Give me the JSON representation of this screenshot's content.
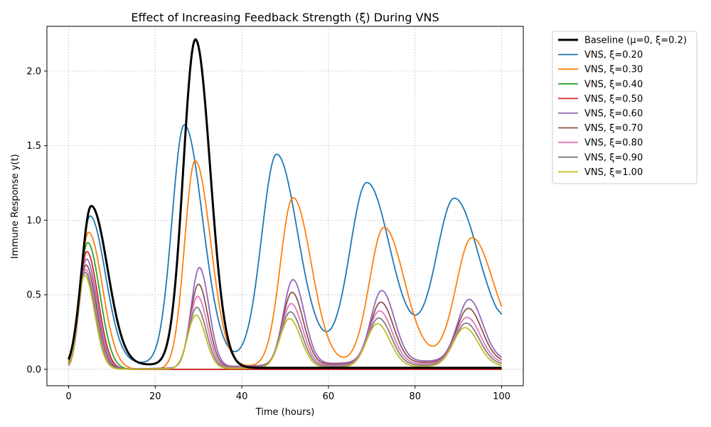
{
  "chart_data": {
    "type": "line",
    "title": "Effect of Increasing Feedback Strength (ξ) During VNS",
    "xlabel": "Time (hours)",
    "ylabel": "Immune Response y(t)",
    "xlim": [
      -5,
      105
    ],
    "ylim": [
      -0.11,
      2.3
    ],
    "x_ticks": [
      0,
      20,
      40,
      60,
      80,
      100
    ],
    "x_tick_labels": [
      "0",
      "20",
      "40",
      "60",
      "80",
      "100"
    ],
    "y_ticks": [
      0.0,
      0.5,
      1.0,
      1.5,
      2.0
    ],
    "y_tick_labels": [
      "0.0",
      "0.5",
      "1.0",
      "1.5",
      "2.0"
    ],
    "grid": true,
    "grid_style": "dotted",
    "legend_position": "outside-top-right",
    "series": [
      {
        "name": "Baseline (μ=0, ξ=0.2)",
        "color": "#000000",
        "width": 3,
        "peaks": [
          [
            5.2,
            1.09,
            2.2,
            3.8
          ],
          [
            29.3,
            2.19,
            2.8,
            3.4
          ]
        ],
        "troughs": [
          [
            18.5,
            0.03
          ]
        ],
        "tail": [
          [
            45,
            0.01
          ]
        ]
      },
      {
        "name": "VNS, ξ=0.20",
        "color": "#1f77b4",
        "width": 1.8,
        "peaks": [
          [
            4.9,
            1.02,
            2.0,
            3.6
          ],
          [
            26.7,
            1.59,
            2.8,
            4.2
          ],
          [
            48.0,
            1.35,
            3.4,
            4.8
          ],
          [
            68.8,
            1.1,
            3.8,
            5.2
          ],
          [
            89.0,
            0.94,
            4.0,
            5.4
          ]
        ],
        "troughs": [
          [
            16.5,
            0.04
          ],
          [
            37.0,
            0.06
          ],
          [
            58.0,
            0.12
          ],
          [
            78.5,
            0.18
          ],
          [
            98.5,
            0.23
          ]
        ],
        "tail": [
          [
            100,
            0.25
          ]
        ]
      },
      {
        "name": "VNS, ξ=0.30",
        "color": "#ff7f0e",
        "width": 1.8,
        "peaks": [
          [
            4.6,
            0.92,
            1.9,
            3.2
          ],
          [
            29.2,
            1.39,
            2.4,
            3.6
          ],
          [
            51.8,
            1.12,
            2.9,
            4.2
          ],
          [
            72.8,
            0.89,
            3.3,
            4.6
          ],
          [
            93.0,
            0.75,
            3.5,
            4.8
          ]
        ],
        "troughs": [
          [
            18.0,
            0.0
          ],
          [
            40.0,
            0.02
          ],
          [
            61.5,
            0.04
          ],
          [
            82.5,
            0.08
          ]
        ],
        "tail": [
          [
            100,
            0.16
          ]
        ]
      },
      {
        "name": "VNS, ξ=0.40",
        "color": "#2ca02c",
        "width": 1.8,
        "peaks": [
          [
            4.4,
            0.85,
            1.8,
            2.8
          ]
        ],
        "troughs": [],
        "tail": [
          [
            18,
            0.0
          ]
        ]
      },
      {
        "name": "VNS, ξ=0.50",
        "color": "#d62728",
        "width": 1.8,
        "peaks": [
          [
            4.2,
            0.79,
            1.7,
            2.6
          ]
        ],
        "troughs": [],
        "tail": [
          [
            18,
            0.0
          ]
        ]
      },
      {
        "name": "VNS, ξ=0.60",
        "color": "#9467bd",
        "width": 1.8,
        "peaks": [
          [
            4.1,
            0.74,
            1.6,
            2.5
          ],
          [
            30.2,
            0.67,
            1.9,
            2.2
          ],
          [
            51.8,
            0.57,
            2.2,
            2.6
          ],
          [
            72.3,
            0.48,
            2.5,
            2.9
          ],
          [
            92.5,
            0.41,
            2.7,
            3.1
          ]
        ],
        "troughs": [],
        "tail": [
          [
            100,
            0.06
          ]
        ]
      },
      {
        "name": "VNS, ξ=0.70",
        "color": "#8c564b",
        "width": 1.8,
        "peaks": [
          [
            4.0,
            0.7,
            1.6,
            2.4
          ],
          [
            30.0,
            0.56,
            1.9,
            2.2
          ],
          [
            51.6,
            0.49,
            2.2,
            2.6
          ],
          [
            72.1,
            0.41,
            2.5,
            2.9
          ],
          [
            92.3,
            0.36,
            2.7,
            3.1
          ]
        ],
        "troughs": [],
        "tail": [
          [
            100,
            0.05
          ]
        ]
      },
      {
        "name": "VNS, ξ=0.80",
        "color": "#e377c2",
        "width": 1.8,
        "peaks": [
          [
            3.9,
            0.67,
            1.5,
            2.3
          ],
          [
            29.8,
            0.48,
            1.9,
            2.2
          ],
          [
            51.4,
            0.42,
            2.2,
            2.6
          ],
          [
            71.8,
            0.36,
            2.5,
            2.9
          ],
          [
            92.0,
            0.31,
            2.7,
            3.1
          ]
        ],
        "troughs": [],
        "tail": [
          [
            100,
            0.04
          ]
        ]
      },
      {
        "name": "VNS, ξ=0.90",
        "color": "#7f7f7f",
        "width": 1.8,
        "peaks": [
          [
            3.8,
            0.65,
            1.5,
            2.3
          ],
          [
            29.6,
            0.41,
            1.9,
            2.2
          ],
          [
            51.2,
            0.37,
            2.2,
            2.6
          ],
          [
            71.6,
            0.32,
            2.5,
            2.9
          ],
          [
            91.8,
            0.28,
            2.7,
            3.1
          ]
        ],
        "troughs": [],
        "tail": [
          [
            100,
            0.03
          ]
        ]
      },
      {
        "name": "VNS, ξ=1.00",
        "color": "#bcbd22",
        "width": 1.8,
        "peaks": [
          [
            3.7,
            0.63,
            1.5,
            2.3
          ],
          [
            29.4,
            0.36,
            1.9,
            2.2
          ],
          [
            51.0,
            0.33,
            2.2,
            2.6
          ],
          [
            71.3,
            0.29,
            2.5,
            2.9
          ],
          [
            91.5,
            0.26,
            2.7,
            3.1
          ]
        ],
        "troughs": [],
        "tail": [
          [
            100,
            0.02
          ]
        ]
      }
    ]
  }
}
